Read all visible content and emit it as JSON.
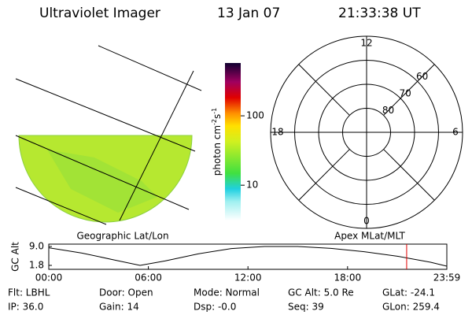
{
  "header": {
    "title": "Ultraviolet Imager",
    "date": "13 Jan 07",
    "time": "21:33:38 UT"
  },
  "colorbar": {
    "label": "photon cm",
    "exp1": "-2",
    "mid": "s",
    "exp2": "-1",
    "log": true,
    "range": [
      3.1,
      577
    ],
    "ticks": [
      100,
      10
    ]
  },
  "left_panel": {
    "caption": "Geographic Lat/Lon"
  },
  "polar_plot": {
    "caption": "Apex MLat/MLT",
    "mlt_labels": [
      12,
      18,
      6,
      0
    ],
    "lat_labels": [
      60,
      70,
      80
    ]
  },
  "altitude_plot": {
    "ylabel": "GC Alt",
    "yticks": [
      {
        "value": 9,
        "label": "9.0"
      },
      {
        "value": 1.8,
        "label": "1.8"
      }
    ],
    "ylim": [
      1.8,
      9
    ],
    "xlim": [
      0,
      23.98
    ],
    "xticks": [
      {
        "value": 0,
        "label": "00:00"
      },
      {
        "value": 6,
        "label": "06:00"
      },
      {
        "value": 12,
        "label": "12:00"
      },
      {
        "value": 18,
        "label": "18:00"
      },
      {
        "value": 23.98,
        "label": "23:59"
      }
    ],
    "x": [
      0,
      2,
      4,
      5.5,
      7,
      9,
      11,
      13,
      15,
      17,
      19,
      21,
      23,
      23.98
    ],
    "values": [
      8.5,
      6.5,
      3.8,
      1.8,
      3.5,
      6.2,
      8.2,
      9.0,
      9.0,
      8.3,
      7.0,
      5.3,
      3.0,
      1.5
    ],
    "marker": 21.56,
    "marker_color": "#e00000"
  },
  "info": {
    "rows": [
      [
        "Flt: LBHL",
        "Door: Open",
        "Mode: Normal",
        "GC Alt: 5.0 Re",
        "GLat: -24.1"
      ],
      [
        "IP: 36.0",
        "Gain: 14",
        "Dsp: -0.0",
        "Seq: 39",
        "GLon: 259.4"
      ]
    ]
  }
}
